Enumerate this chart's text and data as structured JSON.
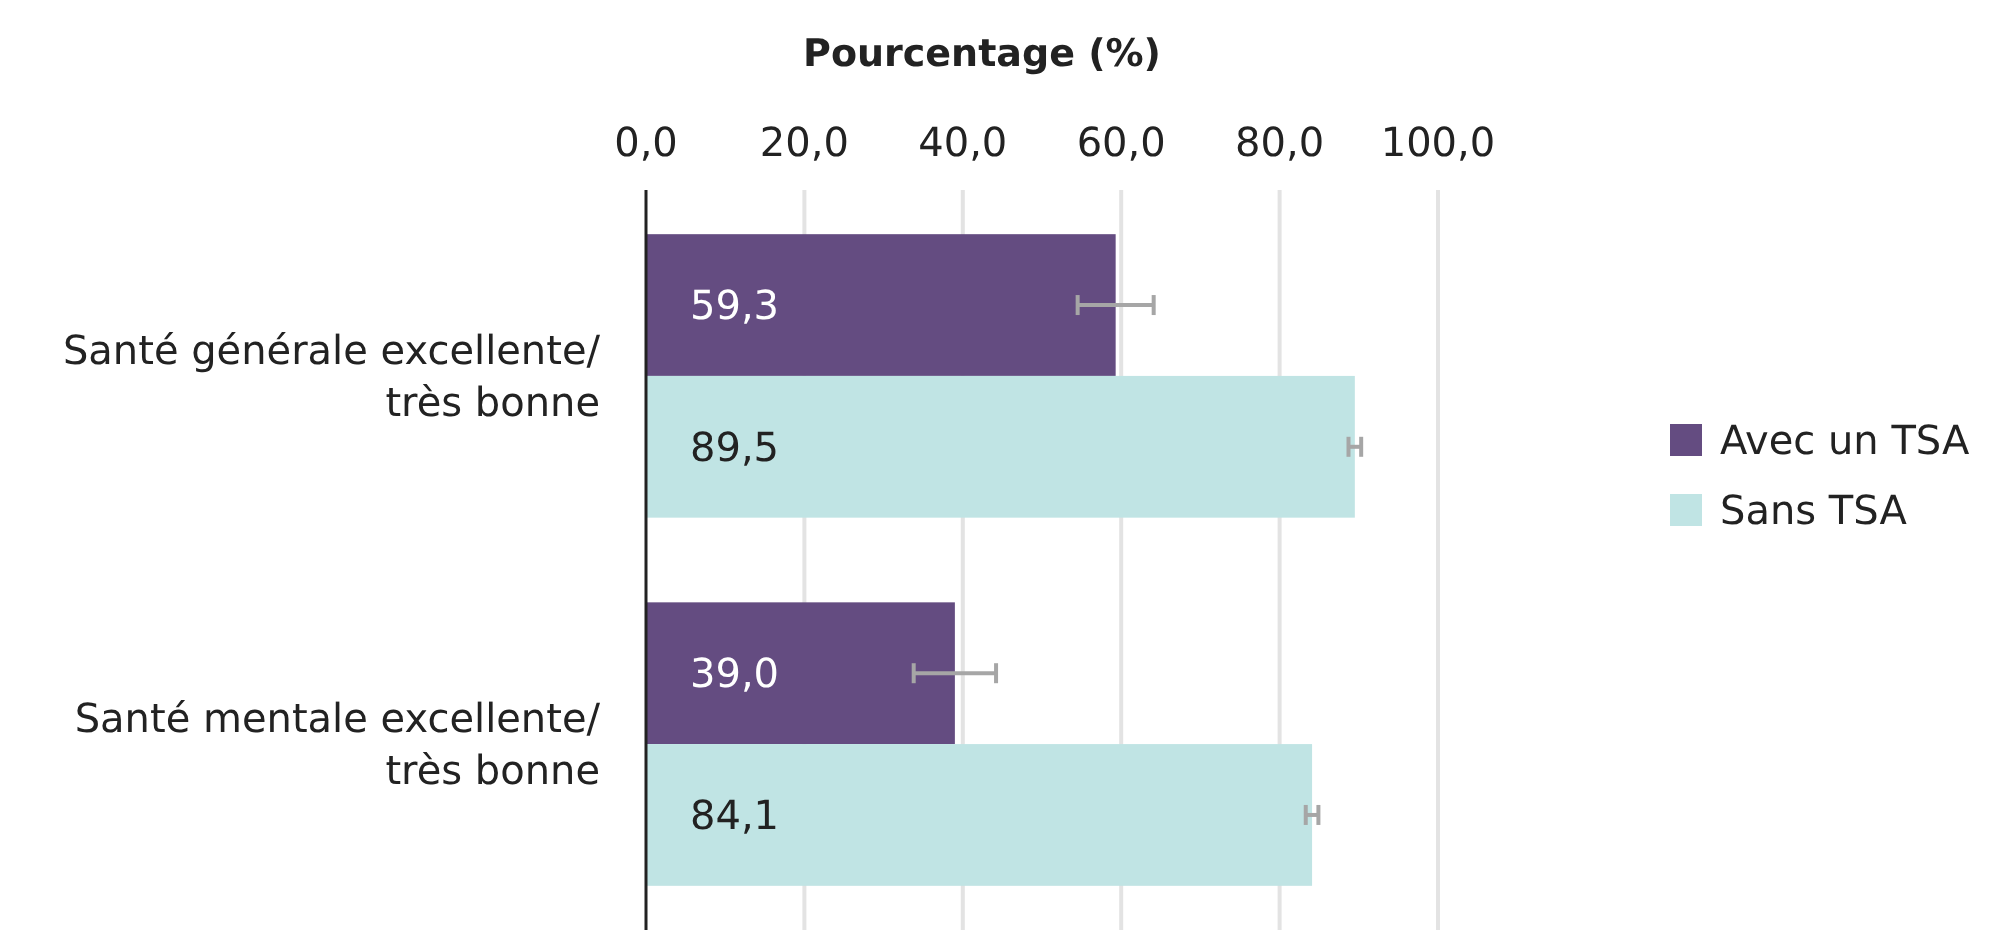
{
  "chart_data": {
    "type": "bar",
    "orientation": "horizontal",
    "xlabel": "Pourcentage (%)",
    "categories": [
      "Santé générale excellente/ très bonne",
      "Santé mentale excellente/ très bonne"
    ],
    "series": [
      {
        "name": "Avec un TSA",
        "color": "#644c81",
        "values": [
          59.3,
          39.0
        ],
        "value_labels": [
          "59,3",
          "39,0"
        ],
        "errors": [
          4.8,
          5.2
        ]
      },
      {
        "name": "Sans TSA",
        "color": "#c0e4e4",
        "values": [
          89.5,
          84.1
        ],
        "value_labels": [
          "89,5",
          "84,1"
        ],
        "errors": [
          0.8,
          0.8
        ]
      }
    ],
    "xlim": [
      0,
      100
    ],
    "xticks": [
      {
        "value": 0,
        "label": "0,0"
      },
      {
        "value": 20,
        "label": "20,0"
      },
      {
        "value": 40,
        "label": "40,0"
      },
      {
        "value": 60,
        "label": "60,0"
      },
      {
        "value": 80,
        "label": "80,0"
      },
      {
        "value": 100,
        "label": "100,0"
      }
    ],
    "grid": "x",
    "legend": "right"
  }
}
